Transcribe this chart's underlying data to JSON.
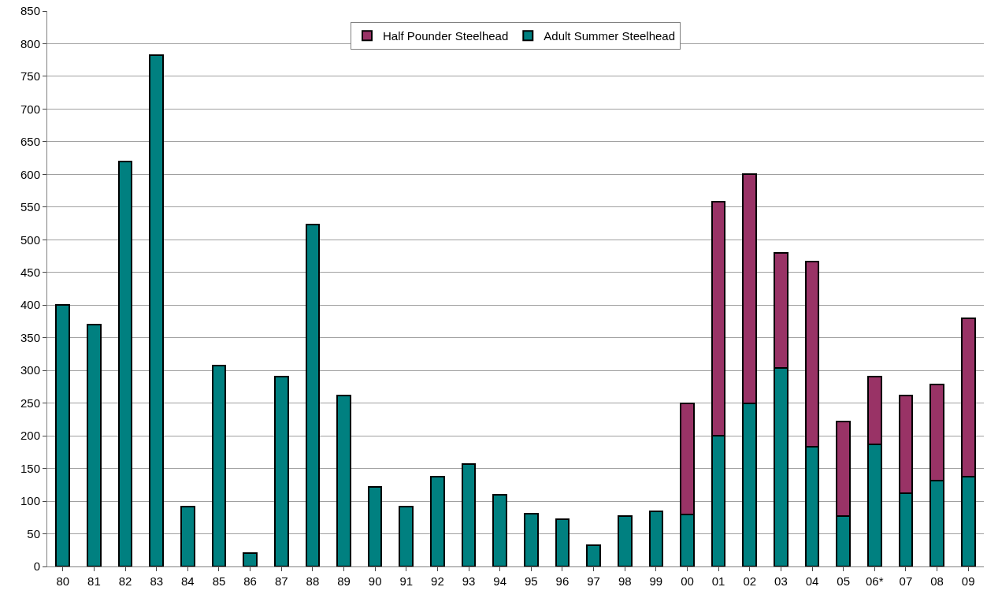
{
  "chart_data": {
    "type": "bar",
    "stacked": true,
    "categories": [
      "80",
      "81",
      "82",
      "83",
      "84",
      "85",
      "86",
      "87",
      "88",
      "89",
      "90",
      "91",
      "92",
      "93",
      "94",
      "95",
      "96",
      "97",
      "98",
      "99",
      "00",
      "01",
      "02",
      "03",
      "04",
      "05",
      "06*",
      "07",
      "08",
      "09"
    ],
    "series": [
      {
        "name": "Adult Summer Steelhead",
        "color": "#008080",
        "values": [
          400,
          370,
          620,
          782,
          92,
          308,
          20,
          291,
          523,
          262,
          122,
          92,
          137,
          157,
          110,
          81,
          72,
          32,
          77,
          84,
          80,
          200,
          249,
          304,
          183,
          77,
          187,
          112,
          131,
          138
        ]
      },
      {
        "name": "Half Pounder Steelhead",
        "color": "#993366",
        "values": [
          null,
          null,
          null,
          null,
          null,
          null,
          null,
          null,
          null,
          null,
          null,
          null,
          null,
          null,
          null,
          null,
          null,
          null,
          null,
          null,
          169,
          358,
          351,
          176,
          284,
          145,
          103,
          150,
          148,
          242
        ]
      }
    ],
    "ylim": [
      0,
      850
    ],
    "yticks": [
      0,
      50,
      100,
      150,
      200,
      250,
      300,
      350,
      400,
      450,
      500,
      550,
      600,
      650,
      700,
      750,
      800,
      850
    ],
    "grid": "y",
    "legend": "top"
  }
}
